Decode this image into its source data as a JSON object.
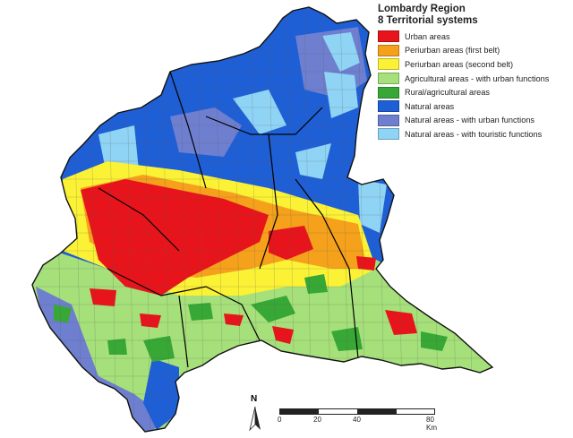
{
  "legend": {
    "title_line1": "Lombardy Region",
    "title_line2": "8 Territorial systems",
    "items": [
      {
        "label": "Urban areas",
        "color": "#e8141b"
      },
      {
        "label": "Periurban areas (first belt)",
        "color": "#f5a11c"
      },
      {
        "label": "Periurban areas (second belt)",
        "color": "#fbf235"
      },
      {
        "label": "Agricultural areas - with urban functions",
        "color": "#a6e07a"
      },
      {
        "label": "Rural/agricultural areas",
        "color": "#37a836"
      },
      {
        "label": "Natural areas",
        "color": "#1f5fd6"
      },
      {
        "label": "Natural areas - with urban functions",
        "color": "#6f7fcf"
      },
      {
        "label": "Natural areas - with touristic functions",
        "color": "#8fd4f4"
      }
    ]
  },
  "north_label": "N",
  "scale": {
    "ticks": [
      "0",
      "20",
      "40",
      "80 Km"
    ]
  }
}
